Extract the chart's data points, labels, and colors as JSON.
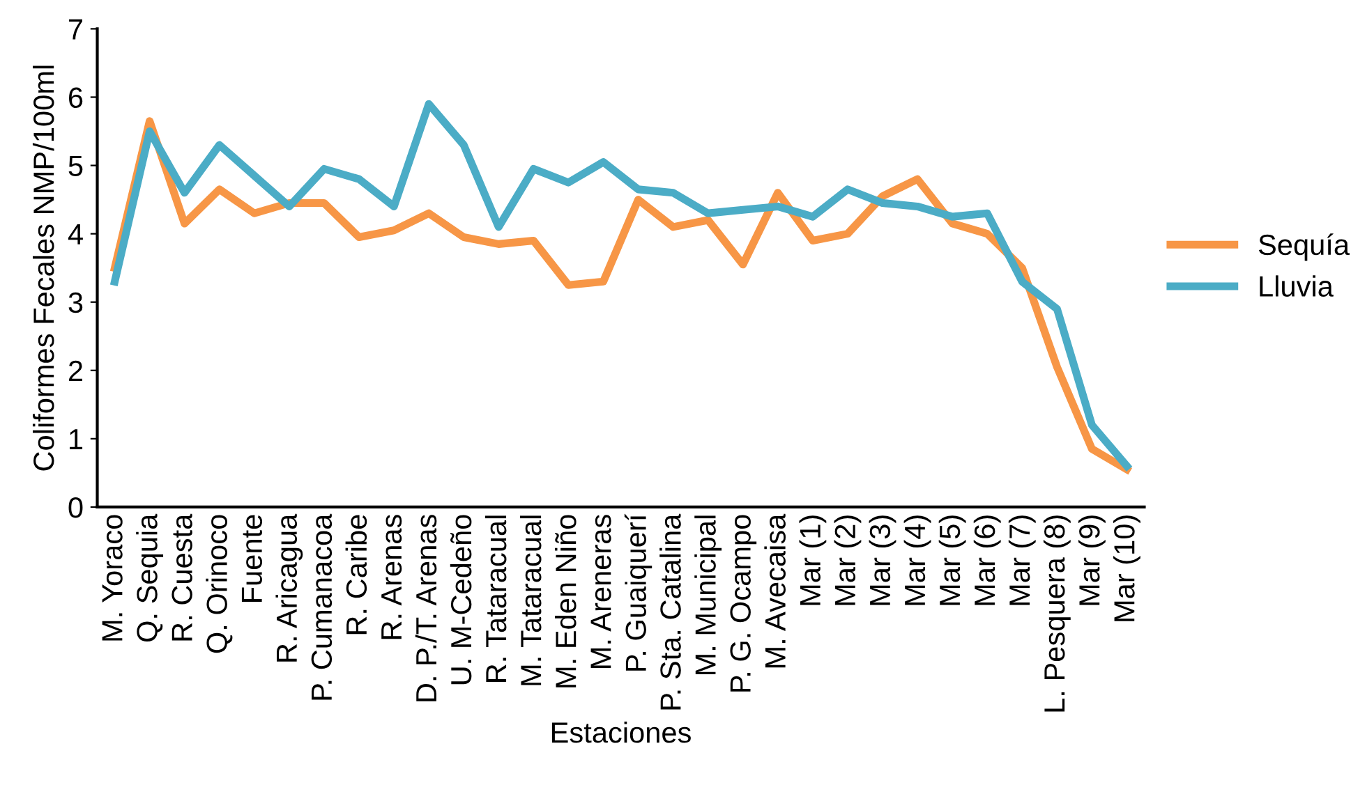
{
  "chart_data": {
    "type": "line",
    "xlabel": "Estaciones",
    "ylabel": "Coliformes Fecales NMP/100ml",
    "categories": [
      "M. Yoraco",
      "Q. Sequia",
      "R. Cuesta",
      "Q. Orinoco",
      "Fuente",
      "R. Aricagua",
      "P. Cumanacoa",
      "R. Caribe",
      "R. Arenas",
      "D. P./T. Arenas",
      "U. M-Cedeño",
      "R. Tataracual",
      "M. Tataracual",
      "M. Eden Niño",
      "M. Areneras",
      "P. Guaiquerí",
      "P. Sta. Catalina",
      "M. Municipal",
      "P. G. Ocampo",
      "M. Avecaisa",
      "Mar (1)",
      "Mar (2)",
      "Mar (3)",
      "Mar (4)",
      "Mar (5)",
      "Mar (6)",
      "Mar (7)",
      "L. Pesquera (8)",
      "Mar (9)",
      "Mar (10)"
    ],
    "series": [
      {
        "name": "Sequía",
        "color": "#f79646",
        "values": [
          3.5,
          5.65,
          4.15,
          4.65,
          4.3,
          4.45,
          4.45,
          3.95,
          4.05,
          4.3,
          3.95,
          3.85,
          3.9,
          3.25,
          3.3,
          4.5,
          4.1,
          4.2,
          3.55,
          4.6,
          3.9,
          4.0,
          4.55,
          4.8,
          4.15,
          4.0,
          3.5,
          2.05,
          0.85,
          0.55
        ]
      },
      {
        "name": "Lluvia",
        "color": "#4bacc6",
        "values": [
          3.3,
          5.5,
          4.6,
          5.3,
          4.85,
          4.4,
          4.95,
          4.8,
          4.4,
          5.9,
          5.3,
          4.1,
          4.95,
          4.75,
          5.05,
          4.65,
          4.6,
          4.3,
          4.35,
          4.4,
          4.25,
          4.65,
          4.45,
          4.4,
          4.25,
          4.3,
          3.3,
          2.9,
          1.2,
          0.6
        ]
      }
    ],
    "ylim": [
      0,
      7
    ],
    "yticks": [
      0,
      1,
      2,
      3,
      4,
      5,
      6,
      7
    ],
    "grid": false,
    "legend": "right",
    "marker": "none",
    "line_style": "solid"
  }
}
